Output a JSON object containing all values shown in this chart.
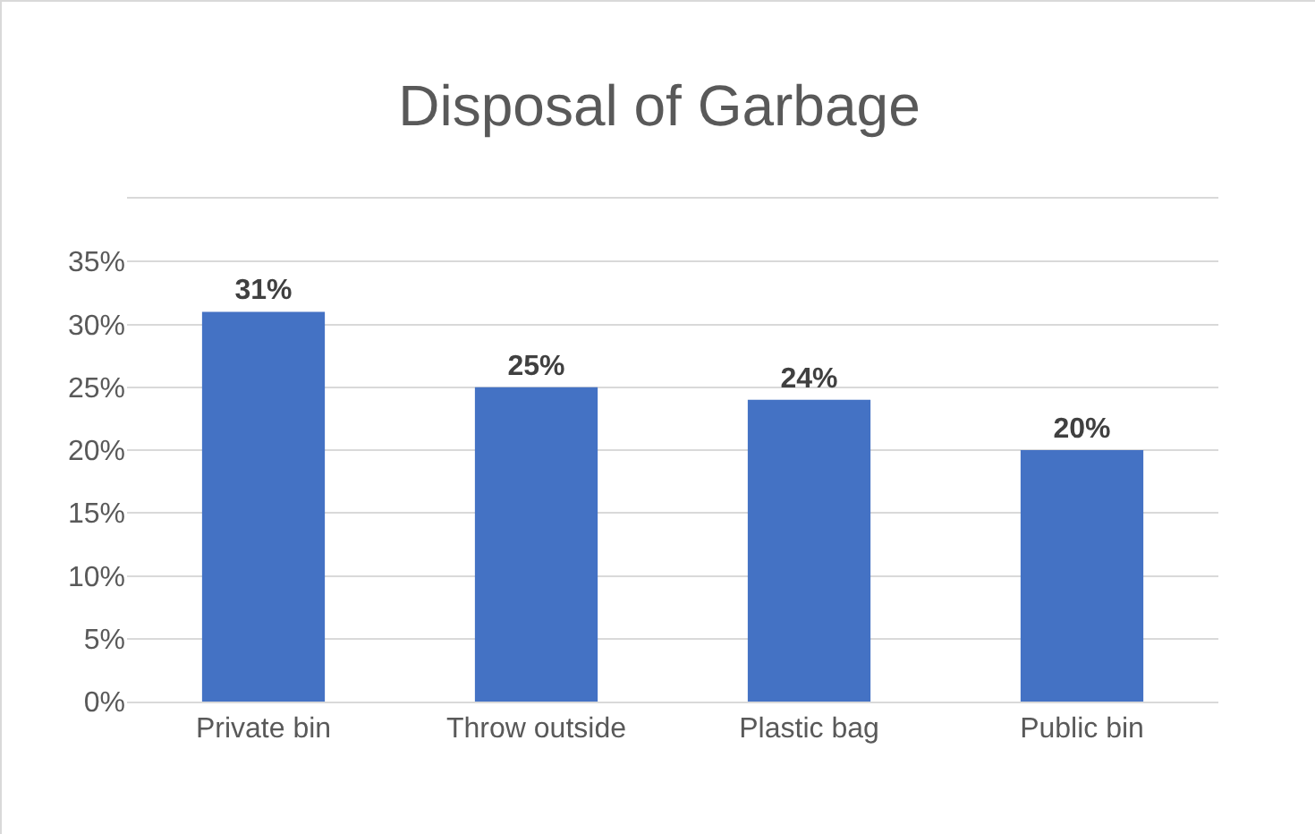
{
  "chart_data": {
    "type": "bar",
    "title": "Disposal of Garbage",
    "categories": [
      "Private bin",
      "Throw outside",
      "Plastic bag",
      "Public bin"
    ],
    "values": [
      31,
      25,
      24,
      20
    ],
    "value_labels": [
      "31%",
      "25%",
      "24%",
      "20%"
    ],
    "color": "#4472c4",
    "ylim": [
      0,
      40
    ],
    "yticks": [
      {
        "value": 0,
        "label": "0%"
      },
      {
        "value": 5,
        "label": "5%"
      },
      {
        "value": 10,
        "label": "10%"
      },
      {
        "value": 15,
        "label": "15%"
      },
      {
        "value": 20,
        "label": "20%"
      },
      {
        "value": 25,
        "label": "25%"
      },
      {
        "value": 30,
        "label": "30%"
      },
      {
        "value": 35,
        "label": "35%"
      },
      {
        "value": 40,
        "label": null
      }
    ],
    "grid": "y"
  }
}
